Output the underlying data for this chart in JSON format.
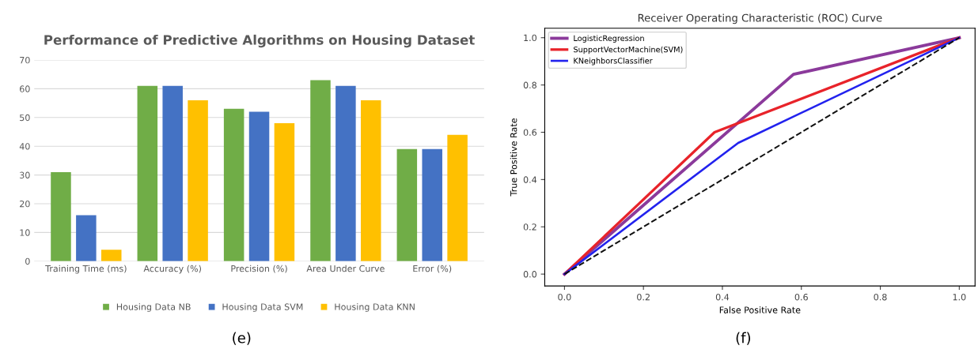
{
  "chart_data": [
    {
      "type": "bar",
      "title": "Performance of Predictive Algorithms on Housing Dataset",
      "categories": [
        "Training Time (ms)",
        "Accuracy (%)",
        "Precision (%)",
        "Area Under Curve",
        "Error (%)"
      ],
      "series": [
        {
          "name": "Housing Data NB",
          "color": "#70ad47",
          "values": [
            31,
            61,
            53,
            63,
            39
          ]
        },
        {
          "name": "Housing Data SVM",
          "color": "#4472c4",
          "values": [
            16,
            61,
            52,
            61,
            39
          ]
        },
        {
          "name": "Housing Data KNN",
          "color": "#ffc000",
          "values": [
            4,
            56,
            48,
            56,
            44
          ]
        }
      ],
      "ylim": [
        0,
        70
      ],
      "yticks": [
        0,
        10,
        20,
        30,
        40,
        50,
        60,
        70
      ],
      "grid": "y",
      "legend": "bottom",
      "annotations": [
        "(e)"
      ]
    },
    {
      "type": "line",
      "title": "Receiver Operating Characteristic (ROC) Curve",
      "xlabel": "False Positive Rate",
      "ylabel": "True Positive Rate",
      "series": [
        {
          "name": "LogisticRegression",
          "color": "#8b3a9b",
          "x": [
            0,
            0.58,
            1
          ],
          "values": [
            0,
            0.845,
            1
          ]
        },
        {
          "name": "SupportVectorMachine(SVM)",
          "color": "#e8232a",
          "x": [
            0,
            0.38,
            1
          ],
          "values": [
            0,
            0.6,
            1
          ]
        },
        {
          "name": "KNeighborsClassifier",
          "color": "#2222ee",
          "x": [
            0,
            0.44,
            1
          ],
          "values": [
            0,
            0.555,
            1
          ]
        },
        {
          "color": "#111111",
          "x": [
            0,
            1
          ],
          "values": [
            0,
            1
          ],
          "line_style": "dashed"
        }
      ],
      "xlim": [
        -0.05,
        1.04
      ],
      "ylim": [
        -0.05,
        1.04
      ],
      "xticks": [
        {
          "value": 0,
          "label": "0.0"
        },
        0.2,
        0.4,
        0.6,
        0.8,
        {
          "value": 1,
          "label": "1.0"
        }
      ],
      "yticks": [
        {
          "value": 0,
          "label": "0.0"
        },
        0.2,
        0.4,
        0.6,
        0.8,
        {
          "value": 1,
          "label": "1.0"
        }
      ],
      "legend": "top left",
      "annotations": [
        "(f)"
      ]
    }
  ]
}
